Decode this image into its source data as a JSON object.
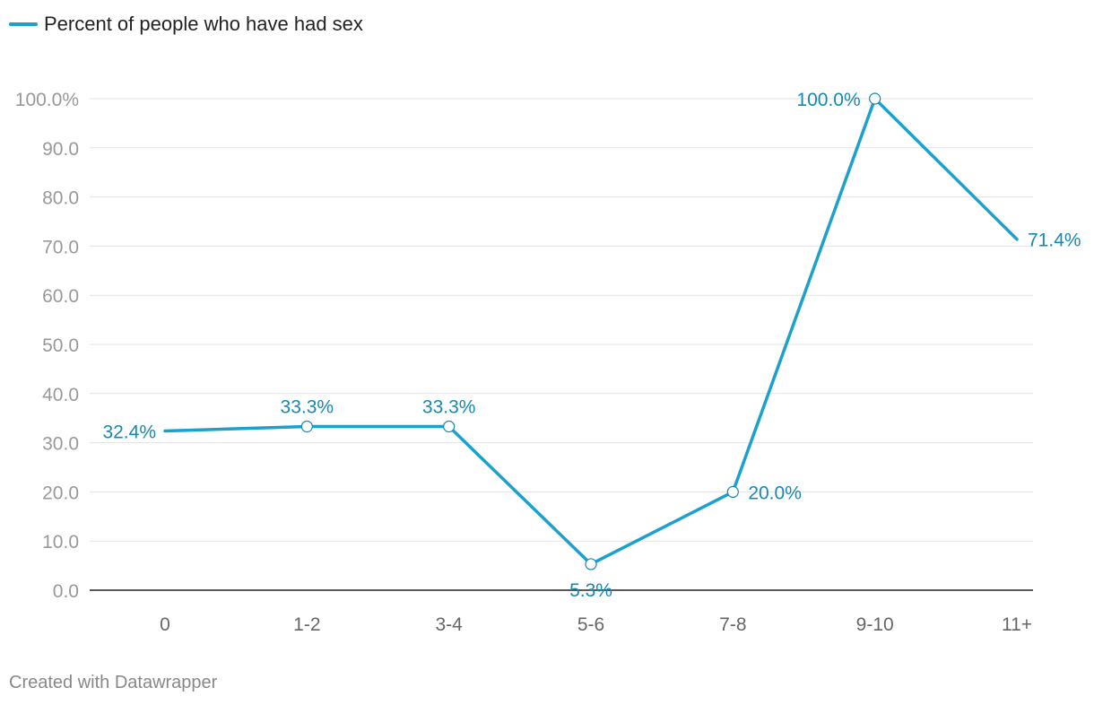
{
  "colors": {
    "line": "#1ba1cc",
    "label": "#1489b3",
    "grid": "#e3e3e3",
    "tick": "#999999",
    "axis": "#222222"
  },
  "legend": {
    "label": "Percent of people who have had sex"
  },
  "credit": "Created with Datawrapper",
  "chart_data": {
    "type": "line",
    "title": "",
    "xlabel": "",
    "ylabel": "",
    "categories": [
      "0",
      "1-2",
      "3-4",
      "5-6",
      "7-8",
      "9-10",
      "11+"
    ],
    "series": [
      {
        "name": "Percent of people who have had sex",
        "values": [
          32.4,
          33.3,
          33.3,
          5.3,
          20.0,
          100.0,
          71.4
        ],
        "labels": [
          "32.4%",
          "33.3%",
          "33.3%",
          "5.3%",
          "20.0%",
          "100.0%",
          "71.4%"
        ]
      }
    ],
    "ylim": [
      0,
      100
    ],
    "yticks": [
      0,
      10,
      20,
      30,
      40,
      50,
      60,
      70,
      80,
      90,
      100
    ],
    "ytick_labels": [
      "0.0",
      "10.0",
      "20.0",
      "30.0",
      "40.0",
      "50.0",
      "60.0",
      "70.0",
      "80.0",
      "90.0",
      "100.0%"
    ],
    "grid": true,
    "legend": "top-left"
  }
}
